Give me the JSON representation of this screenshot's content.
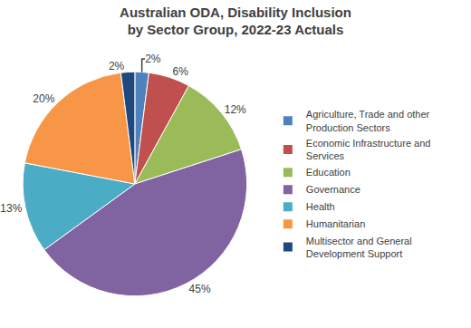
{
  "chart_data": {
    "type": "pie",
    "title": "Australian ODA, Disability Inclusion by Sector Group, 2022-23 Actuals",
    "categories": [
      "Agriculture, Trade and other Production Sectors",
      "Economic Infrastructure and Services",
      "Education",
      "Governance",
      "Health",
      "Humanitarian",
      "Multisector and General Development Support"
    ],
    "values": [
      2,
      6,
      12,
      45,
      13,
      20,
      2
    ],
    "value_labels": [
      "2%",
      "6%",
      "12%",
      "45%",
      "13%",
      "20%",
      "2%"
    ],
    "colors": [
      "#4f81bd",
      "#c0504d",
      "#9bbb59",
      "#8064a2",
      "#4bacc6",
      "#f79646",
      "#1f497d"
    ],
    "data_labels": true,
    "legend": "right"
  }
}
